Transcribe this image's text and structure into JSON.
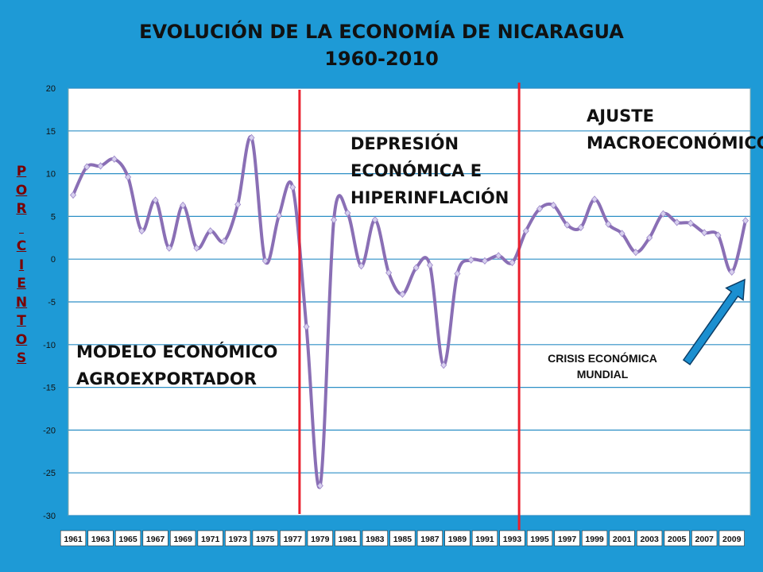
{
  "chart_data": {
    "type": "line",
    "title": "EVOLUCIÓN DE LA ECONOMÍA DE NICARAGUA",
    "subtitle": "1960-2010",
    "ylabel": "POR CIENTOS",
    "xlabel": "",
    "ylim": [
      -30,
      20
    ],
    "yticks": [
      20,
      15,
      10,
      5,
      0,
      -5,
      -10,
      -15,
      -20,
      -25,
      -30
    ],
    "xticks": [
      "1961",
      "1963",
      "1965",
      "1967",
      "1969",
      "1971",
      "1973",
      "1975",
      "1977",
      "1979",
      "1981",
      "1983",
      "1985",
      "1987",
      "1989",
      "1991",
      "1993",
      "1995",
      "1997",
      "1999",
      "2001",
      "2003",
      "2005",
      "2007",
      "2009"
    ],
    "grid": true,
    "series": [
      {
        "x": [
          1961,
          1962,
          1963,
          1964,
          1965,
          1966,
          1967,
          1968,
          1969,
          1970,
          1971,
          1972,
          1973,
          1974,
          1975,
          1976,
          1977,
          1978,
          1979,
          1980,
          1981,
          1982,
          1983,
          1984,
          1985,
          1986,
          1987,
          1988,
          1989,
          1990,
          1991,
          1992,
          1993,
          1994,
          1995,
          1996,
          1997,
          1998,
          1999,
          2000,
          2001,
          2002,
          2003,
          2004,
          2005,
          2006,
          2007,
          2008,
          2009,
          2010
        ],
        "values": [
          7.5,
          10.8,
          10.9,
          11.7,
          9.6,
          3.3,
          6.9,
          1.3,
          6.3,
          1.3,
          3.3,
          2.1,
          6.4,
          14.2,
          -0.2,
          5.1,
          8.4,
          -7.9,
          -26.5,
          4.6,
          5.4,
          -0.8,
          4.6,
          -1.6,
          -4.1,
          -1.0,
          -0.7,
          -12.4,
          -1.7,
          -0.1,
          -0.2,
          0.4,
          -0.4,
          3.3,
          5.9,
          6.3,
          4.0,
          3.7,
          7.0,
          4.1,
          3.0,
          0.8,
          2.5,
          5.3,
          4.3,
          4.2,
          3.1,
          2.8,
          -1.5,
          4.5
        ],
        "color": "#8a6fb5"
      }
    ],
    "dividers": [
      1977.5,
      1993.5
    ],
    "divider_color": "#ea1f2d"
  },
  "annotations": {
    "model": [
      "MODELO ECONÓMICO",
      "AGROEXPORTADOR"
    ],
    "depression": [
      "DEPRESIÓN",
      "ECONÓMICA E",
      "HIPERINFLACIÓN"
    ],
    "adjust": [
      "AJUSTE",
      "MACROECONÓMICO"
    ],
    "crisis": [
      "CRISIS ECONÓMICA",
      "MUNDIAL"
    ]
  },
  "colors": {
    "background": "#1e9ad6",
    "plot": "#ffffff",
    "grid": "#2d8fc6",
    "arrow": "#1b8fd0",
    "ylabel": "#7a0000"
  }
}
